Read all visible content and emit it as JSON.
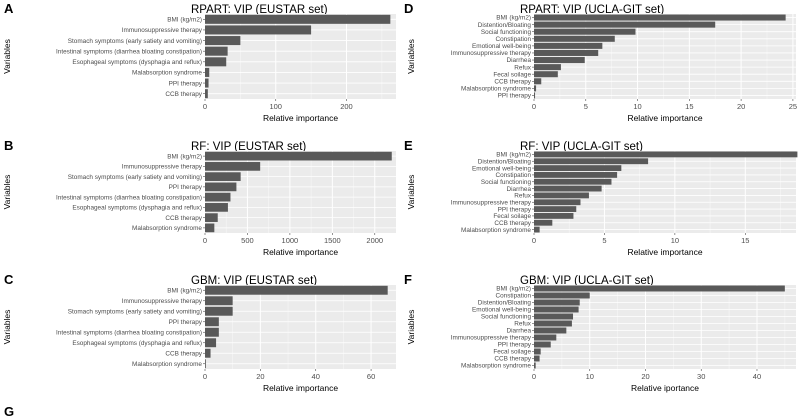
{
  "figure_trailing_label": "G",
  "chart_data": [
    {
      "panel": "A",
      "type": "bar",
      "orientation": "horizontal",
      "title": "RPART: VIP (EUSTAR set)",
      "xlabel": "Relative importance",
      "ylabel": "Variables",
      "xlim": [
        0,
        270
      ],
      "xticks": [
        0,
        100,
        200
      ],
      "categories": [
        "BMI (kg/m2)",
        "Immunosuppressive therapy",
        "Stomach symptoms (early satiety and vomiting)",
        "Intestinal symptoms (diarrhea bloating constipation)",
        "Esophageal symptoms (dysphagia and reflux)",
        "Malabsorption syndrome",
        "PPI therapy",
        "CCB therapy"
      ],
      "values": [
        262,
        150,
        50,
        32,
        30,
        6,
        5,
        4
      ],
      "grid": true,
      "bar_color": "#595959"
    },
    {
      "panel": "B",
      "type": "bar",
      "orientation": "horizontal",
      "title": "RF: VIP (EUSTAR set)",
      "xlabel": "Relative importance",
      "ylabel": "Variables",
      "xlim": [
        0,
        2250
      ],
      "xticks": [
        0,
        500,
        1000,
        1500,
        2000
      ],
      "categories": [
        "BMI (kg/m2)",
        "Immunosuppressive therapy",
        "Stomach symptoms (early satiety and vomiting)",
        "PPI therapy",
        "Intestinal symptoms (diarrhea bloating constipation)",
        "Esophageal symptoms (dysphagia and reflux)",
        "CCB therapy",
        "Malabsorption syndrome"
      ],
      "values": [
        2200,
        650,
        420,
        370,
        300,
        270,
        150,
        110
      ],
      "grid": true,
      "bar_color": "#595959"
    },
    {
      "panel": "C",
      "type": "bar",
      "orientation": "horizontal",
      "title": "GBM: VIP (EUSTAR set)",
      "xlabel": "Relative importance",
      "ylabel": "Variables",
      "xlim": [
        0,
        69
      ],
      "xticks": [
        0,
        20,
        40,
        60
      ],
      "categories": [
        "BMI (kg/m2)",
        "Immunosuppressive therapy",
        "Stomach symptoms (early satiety and vomiting)",
        "PPI therapy",
        "Intestinal symptoms (diarrhea bloating constipation)",
        "Esophageal symptoms (dysphagia and reflux)",
        "CCB therapy",
        "Malabsorption syndrome"
      ],
      "values": [
        66,
        10,
        10,
        5,
        5,
        4,
        2,
        0.3
      ],
      "grid": true,
      "bar_color": "#595959"
    },
    {
      "panel": "D",
      "type": "bar",
      "orientation": "horizontal",
      "title": "RPART: VIP (UCLA-GIT set)",
      "xlabel": "Relative importance",
      "ylabel": "Variables",
      "xlim": [
        0,
        25.3
      ],
      "xticks": [
        0,
        5,
        10,
        15,
        20,
        25
      ],
      "categories": [
        "BMI (kg/m2)",
        "Distention/Bloating",
        "Social functioning",
        "Constipation",
        "Emotional well-being",
        "Immunosuppressive therapy",
        "Diarrhea",
        "Refux",
        "Fecal soilage",
        "CCB therapy",
        "Malabsorption syndrome",
        "PPI therapy"
      ],
      "values": [
        24.3,
        17.5,
        9.8,
        7.8,
        6.6,
        6.2,
        4.9,
        2.6,
        2.3,
        0.7,
        0.2,
        0.1
      ],
      "grid": true,
      "bar_color": "#595959"
    },
    {
      "panel": "E",
      "type": "bar",
      "orientation": "horizontal",
      "title": "RF: VIP (UCLA-GIT set)",
      "xlabel": "Relative importance",
      "ylabel": "Variables",
      "xlim": [
        0,
        18.6
      ],
      "xticks": [
        0,
        5,
        10,
        15
      ],
      "categories": [
        "BMI (kg/m2)",
        "Distention/Bloating",
        "Emotional well-being",
        "Constipation",
        "Social functioning",
        "Diarrhea",
        "Refux",
        "Immunosuppressive therapy",
        "PPI therapy",
        "Fecal soilage",
        "CCB therapy",
        "Malabsorption syndrome"
      ],
      "values": [
        18.7,
        8.1,
        6.2,
        5.9,
        5.5,
        4.8,
        3.9,
        3.3,
        3.0,
        2.8,
        1.3,
        0.4
      ],
      "grid": true,
      "bar_color": "#595959"
    },
    {
      "panel": "F",
      "type": "bar",
      "orientation": "horizontal",
      "title": "GBM: VIP (UCLA-GIT set)",
      "xlabel": "Relative iportance",
      "ylabel": "Variables",
      "xlim": [
        0,
        47
      ],
      "xticks": [
        0,
        10,
        20,
        30,
        40
      ],
      "categories": [
        "BMI (kg/m2)",
        "Constipation",
        "Distention/Bloating",
        "Emotional well-being",
        "Social functioning",
        "Refux",
        "Diarrhea",
        "Immunosuppressive therapy",
        "PPI therapy",
        "Fecal soilage",
        "CCB therapy",
        "Malabsorption syndrome"
      ],
      "values": [
        45,
        10,
        8.2,
        8.0,
        7.0,
        6.8,
        5.8,
        4.0,
        3.0,
        1.2,
        1.0,
        0.3
      ],
      "grid": true,
      "bar_color": "#595959"
    }
  ]
}
